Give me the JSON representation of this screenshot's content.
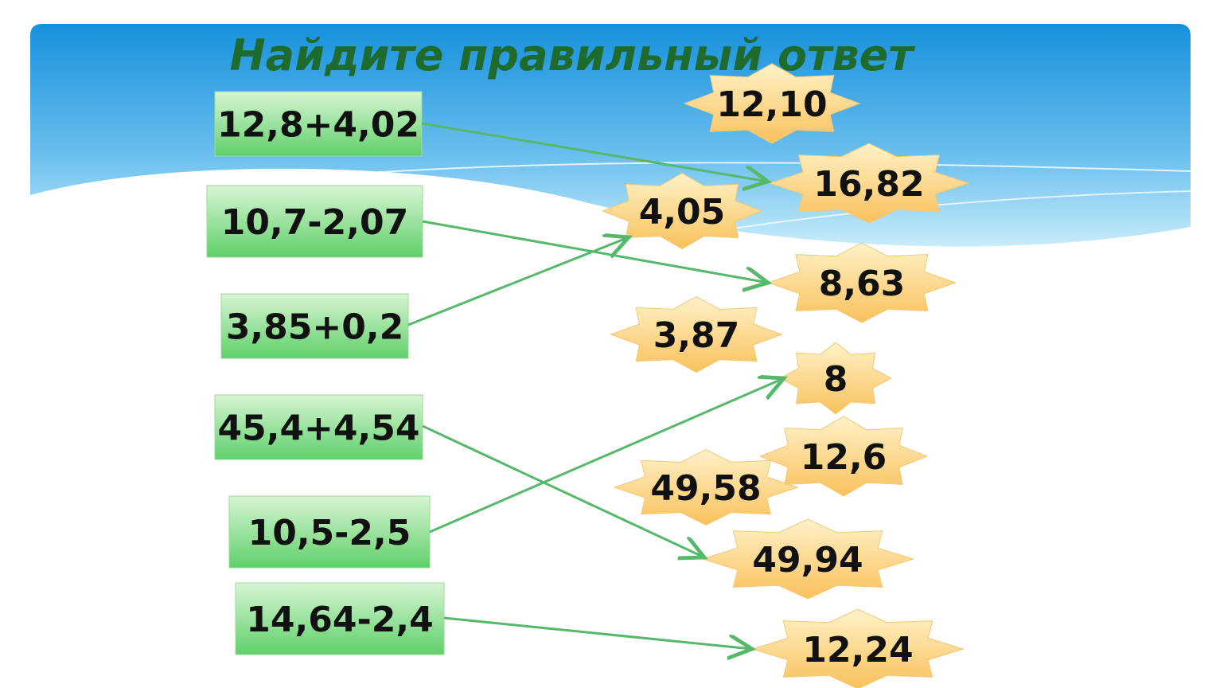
{
  "header": {
    "title": "Найдите правильный ответ"
  },
  "expressions": [
    "12,8+4,02",
    "10,7-2,07",
    "3,85+0,2",
    "45,4+4,54",
    "10,5-2,5",
    "14,64-2,4"
  ],
  "answers": [
    "12,10",
    "16,82",
    "4,05",
    "8,63",
    "3,87",
    "8",
    "49,58",
    "12,6",
    "49,94",
    "12,24"
  ]
}
